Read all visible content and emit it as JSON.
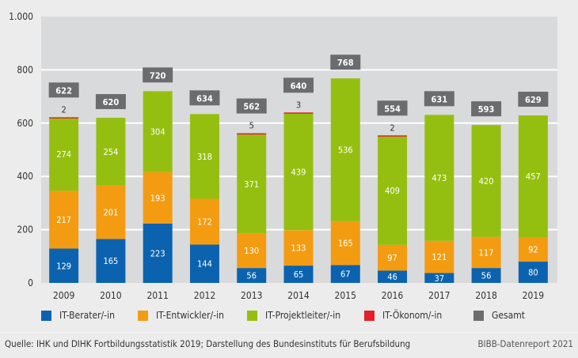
{
  "chart_data": {
    "type": "bar",
    "stacked": true,
    "title": "",
    "xlabel": "",
    "ylabel": "",
    "ylim": [
      0,
      1000
    ],
    "yticks": [
      0,
      200,
      400,
      600,
      800,
      1000
    ],
    "ytick_labels": [
      "0",
      "200",
      "400",
      "600",
      "800",
      "1.000"
    ],
    "grid": true,
    "legend_position": "bottom",
    "categories": [
      "2009",
      "2010",
      "2011",
      "2012",
      "2013",
      "2014",
      "2015",
      "2016",
      "2017",
      "2018",
      "2019"
    ],
    "series": [
      {
        "name": "IT-Berater/-in",
        "color": "#0b63b0",
        "values": [
          129,
          165,
          223,
          144,
          56,
          65,
          67,
          46,
          37,
          56,
          80
        ]
      },
      {
        "name": "IT-Entwickler/-in",
        "color": "#f39c12",
        "values": [
          217,
          201,
          193,
          172,
          130,
          133,
          165,
          97,
          121,
          117,
          92
        ]
      },
      {
        "name": "IT-Projektleiter/-in",
        "color": "#95bf10",
        "values": [
          274,
          254,
          304,
          318,
          371,
          439,
          536,
          409,
          473,
          420,
          457
        ]
      },
      {
        "name": "IT-Ökonom/-in",
        "color": "#e3202b",
        "values": [
          2,
          0,
          0,
          0,
          5,
          3,
          0,
          2,
          0,
          0,
          0
        ]
      }
    ],
    "totals": {
      "name": "Gesamt",
      "color": "#6b6c6e",
      "values": [
        622,
        620,
        720,
        634,
        562,
        640,
        768,
        554,
        631,
        593,
        629
      ]
    }
  },
  "footer": {
    "source": "Quelle: IHK und DIHK Fortbildungsstatistik 2019; Darstellung des Bundesinstituts für Berufsbildung",
    "credit": "BIBB-Datenreport 2021"
  },
  "colors": {
    "background": "#ececed",
    "plot_background": "#d9dadc",
    "gridline": "#ffffff"
  }
}
